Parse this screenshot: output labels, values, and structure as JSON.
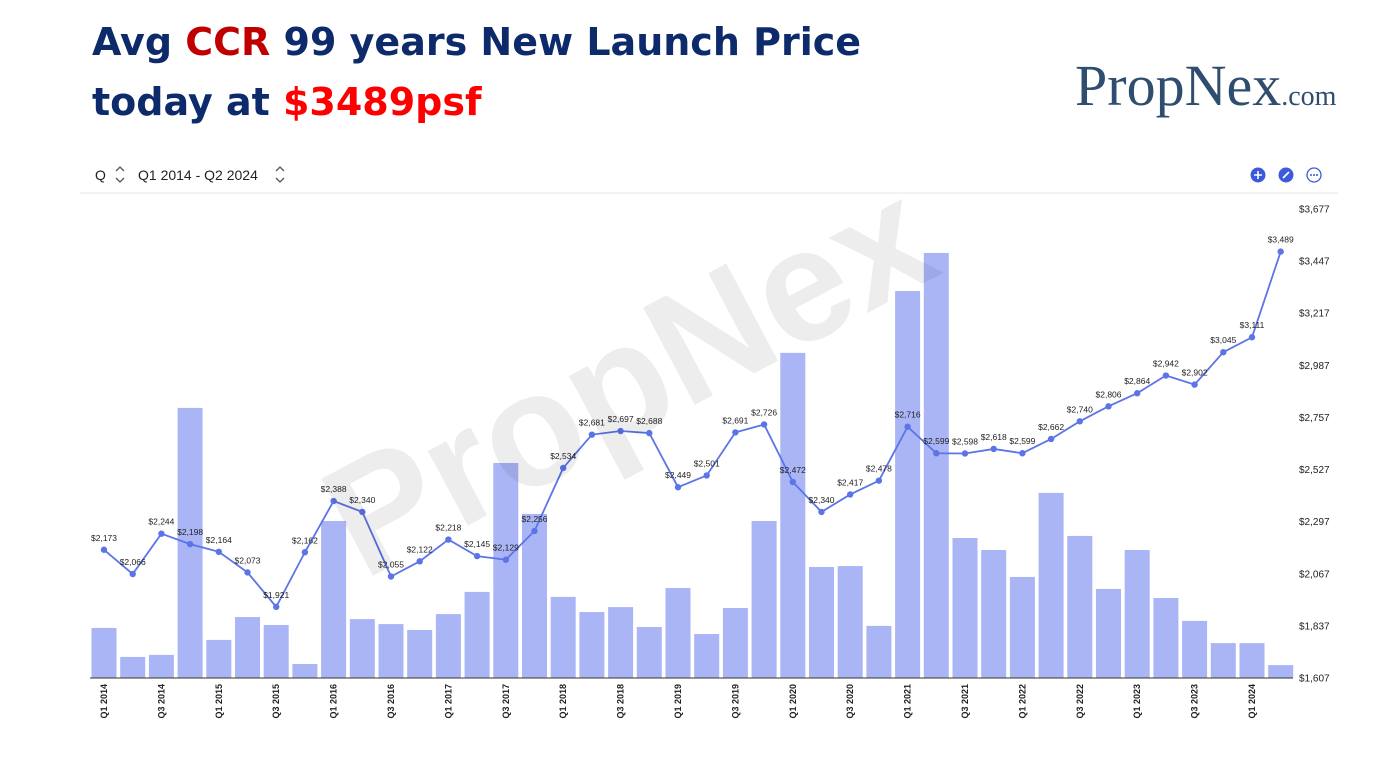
{
  "header": {
    "title_lines": [
      [
        {
          "text": "Avg ",
          "color": "#0d2a6b"
        },
        {
          "text": "CCR",
          "color": "#c00000"
        },
        {
          "text": " 99 years New Launch Price",
          "color": "#0d2a6b"
        }
      ],
      [
        {
          "text": "today at ",
          "color": "#0d2a6b"
        },
        {
          "text": "$3489psf",
          "color": "#ff0000"
        }
      ]
    ],
    "logo": {
      "name": "PropNex",
      "suffix": ".com"
    }
  },
  "controls": {
    "period": "Q",
    "range": "Q1 2014 - Q2 2024"
  },
  "watermark": "PropNex",
  "chart_data": {
    "type": "combo",
    "categories": [
      "Q1 2014",
      null,
      "Q3 2014",
      null,
      "Q1 2015",
      null,
      "Q3 2015",
      null,
      "Q1 2016",
      null,
      "Q3 2016",
      null,
      "Q1 2017",
      null,
      "Q3 2017",
      null,
      "Q1 2018",
      null,
      "Q3 2018",
      null,
      "Q1 2019",
      null,
      "Q3 2019",
      null,
      "Q1 2020",
      null,
      "Q3 2020",
      null,
      "Q1 2021",
      null,
      "Q3 2021",
      null,
      "Q1 2022",
      null,
      "Q3 2022",
      null,
      "Q1 2023",
      null,
      "Q3 2023",
      null,
      "Q1 2024",
      null
    ],
    "series": [
      {
        "type": "bar",
        "color": "#aab5f6",
        "values": [
          1828,
          1700,
          1709,
          2799,
          1775,
          1876,
          1841,
          1669,
          2300,
          1867,
          1845,
          1819,
          1889,
          1987,
          2556,
          2331,
          1965,
          1898,
          1920,
          1832,
          2004,
          1801,
          1916,
          2300,
          3042,
          2097,
          2101,
          1837,
          3315,
          3483,
          2225,
          2172,
          2053,
          2424,
          2234,
          2000,
          2172,
          1960,
          1859,
          1761,
          1761,
          1664
        ]
      },
      {
        "type": "line",
        "color": "#5b74e8",
        "values": [
          2173,
          2066,
          2244,
          2198,
          2164,
          2073,
          1921,
          2162,
          2388,
          2340,
          2055,
          2122,
          2218,
          2145,
          2129,
          2256,
          2534,
          2681,
          2697,
          2688,
          2449,
          2501,
          2691,
          2726,
          2472,
          2340,
          2417,
          2478,
          2716,
          2599,
          2598,
          2618,
          2599,
          2662,
          2740,
          2806,
          2864,
          2942,
          2902,
          3045,
          3111,
          3489
        ],
        "value_labels": [
          "$2,173",
          "$2,066",
          "$2,244",
          "$2,198",
          "$2,164",
          "$2,073",
          "$1,921",
          "$2,162",
          "$2,388",
          "$2,340",
          "$2,055",
          "$2,122",
          "$2,218",
          "$2,145",
          "$2,129",
          "$2,256",
          "$2,534",
          "$2,681",
          "$2,697",
          "$2,688",
          "$2,449",
          "$2,501",
          "$2,691",
          "$2,726",
          "$2,472",
          "$2,340",
          "$2,417",
          "$2,478",
          "$2,716",
          "$2,599",
          "$2,598",
          "$2,618",
          "$2,599",
          "$2,662",
          "$2,740",
          "$2,806",
          "$2,864",
          "$2,942",
          "$2,902",
          "$3,045",
          "$3,111",
          "$3,489"
        ]
      }
    ],
    "ylim": [
      1607,
      3677
    ],
    "yticks": [
      {
        "value": 1607,
        "label": "$1,607"
      },
      {
        "value": 1837,
        "label": "$1,837"
      },
      {
        "value": 2067,
        "label": "$2,067"
      },
      {
        "value": 2297,
        "label": "$2,297"
      },
      {
        "value": 2527,
        "label": "$2,527"
      },
      {
        "value": 2757,
        "label": "$2,757"
      },
      {
        "value": 2987,
        "label": "$2,987"
      },
      {
        "value": 3217,
        "label": "$3,217"
      },
      {
        "value": 3447,
        "label": "$3,447"
      },
      {
        "value": 3677,
        "label": "$3,677"
      }
    ],
    "grid": false
  }
}
